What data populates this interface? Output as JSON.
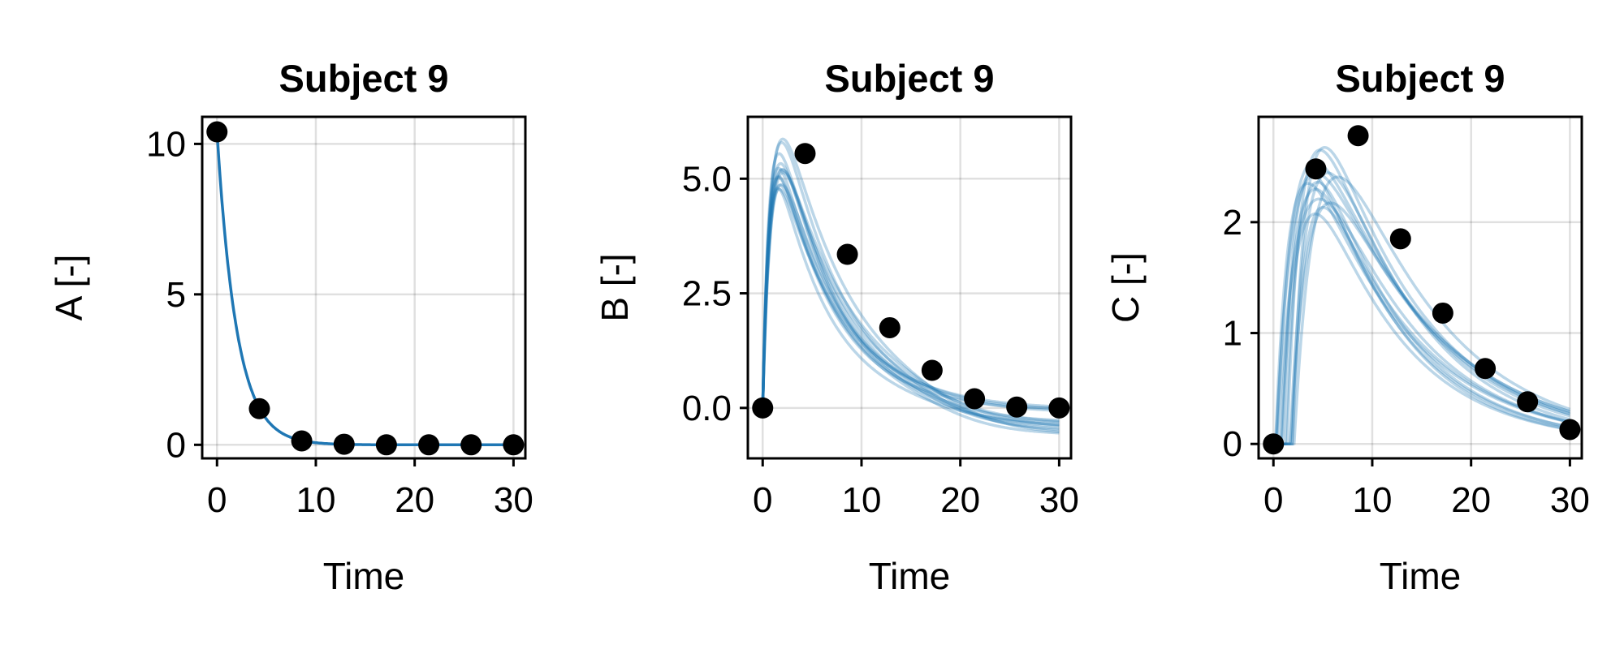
{
  "colors": {
    "curve": "#1f77b4",
    "point": "#000000",
    "frame": "#000000"
  },
  "chart_data": [
    {
      "type": "line",
      "title": "Subject 9",
      "xlabel": "Time",
      "ylabel": "A [-]",
      "xlim": [
        -1.5,
        31.2
      ],
      "ylim": [
        -0.45,
        10.9
      ],
      "xticks": [
        {
          "v": 0,
          "label": "0"
        },
        {
          "v": 10,
          "label": "10"
        },
        {
          "v": 20,
          "label": "20"
        },
        {
          "v": 30,
          "label": "30"
        }
      ],
      "yticks": [
        {
          "v": 0,
          "label": "0"
        },
        {
          "v": 5,
          "label": "5"
        },
        {
          "v": 10,
          "label": "10"
        }
      ],
      "grid": true,
      "observations": {
        "x": [
          0,
          4.29,
          8.57,
          12.86,
          17.14,
          21.43,
          25.71,
          30
        ],
        "y": [
          10.4,
          1.2,
          0.13,
          0.02,
          0.0,
          0.0,
          0.0,
          0.0
        ]
      },
      "model": {
        "kind": "decay",
        "A0": 10.4,
        "k": 0.5,
        "n_samples": 1,
        "solid": true
      }
    },
    {
      "type": "line",
      "title": "Subject 9",
      "xlabel": "Time",
      "ylabel": "B [-]",
      "xlim": [
        -1.5,
        31.2
      ],
      "ylim": [
        -1.1,
        6.35
      ],
      "xticks": [
        {
          "v": 0,
          "label": "0"
        },
        {
          "v": 10,
          "label": "10"
        },
        {
          "v": 20,
          "label": "20"
        },
        {
          "v": 30,
          "label": "30"
        }
      ],
      "yticks": [
        {
          "v": 0,
          "label": "0.0"
        },
        {
          "v": 2.5,
          "label": "2.5"
        },
        {
          "v": 5,
          "label": "5.0"
        }
      ],
      "grid": true,
      "observations": {
        "x": [
          0,
          4.29,
          8.57,
          12.86,
          17.14,
          21.43,
          25.71,
          30
        ],
        "y": [
          0.0,
          5.55,
          3.35,
          1.75,
          0.82,
          0.2,
          0.02,
          0.0
        ]
      },
      "model": {
        "kind": "peak",
        "n_samples": 14,
        "solid": false
      }
    },
    {
      "type": "line",
      "title": "Subject 9",
      "xlabel": "Time",
      "ylabel": "C [-]",
      "xlim": [
        -1.5,
        31.2
      ],
      "ylim": [
        -0.13,
        2.95
      ],
      "xticks": [
        {
          "v": 0,
          "label": "0"
        },
        {
          "v": 10,
          "label": "10"
        },
        {
          "v": 20,
          "label": "20"
        },
        {
          "v": 30,
          "label": "30"
        }
      ],
      "yticks": [
        {
          "v": 0,
          "label": "0"
        },
        {
          "v": 1,
          "label": "1"
        },
        {
          "v": 2,
          "label": "2"
        }
      ],
      "grid": true,
      "observations": {
        "x": [
          0,
          4.29,
          8.57,
          12.86,
          17.14,
          21.43,
          25.71,
          30
        ],
        "y": [
          0.0,
          2.48,
          2.78,
          1.85,
          1.18,
          0.68,
          0.38,
          0.13
        ]
      },
      "model": {
        "kind": "delayed-peak",
        "n_samples": 14,
        "solid": false
      }
    }
  ]
}
